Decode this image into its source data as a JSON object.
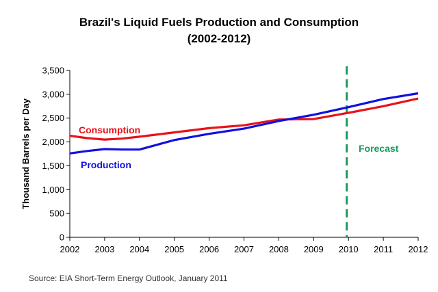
{
  "chart_data": {
    "type": "line",
    "title": "Brazil's Liquid Fuels Production and Consumption",
    "subtitle": "(2002-2012)",
    "xlabel": "",
    "ylabel": "Thousand Barrels per Day",
    "ylim": [
      0,
      3500
    ],
    "yticks": [
      0,
      500,
      1000,
      1500,
      2000,
      2500,
      3000,
      3500
    ],
    "ytick_labels": [
      "0",
      "500",
      "1,000",
      "1,500",
      "2,000",
      "2,500",
      "3,000",
      "3,500"
    ],
    "xlim": [
      2002,
      2012
    ],
    "xticks": [
      "2002",
      "2003",
      "2004",
      "2005",
      "2006",
      "2007",
      "2008",
      "2009",
      "2010",
      "2011",
      "2012"
    ],
    "series": [
      {
        "name": "Consumption",
        "color": "#e8121a",
        "x": [
          2002,
          2002.5,
          2003,
          2003.5,
          2004,
          2005,
          2006,
          2007,
          2008,
          2009,
          2010,
          2011,
          2012
        ],
        "values": [
          2130,
          2080,
          2050,
          2070,
          2110,
          2200,
          2290,
          2350,
          2470,
          2480,
          2610,
          2750,
          2910
        ]
      },
      {
        "name": "Production",
        "color": "#1010e0",
        "x": [
          2002,
          2002.5,
          2003,
          2003.5,
          2004,
          2005,
          2006,
          2007,
          2008,
          2009,
          2010,
          2011,
          2012
        ],
        "values": [
          1760,
          1810,
          1850,
          1840,
          1840,
          2040,
          2170,
          2280,
          2440,
          2570,
          2730,
          2900,
          3020
        ]
      }
    ],
    "forecast_line": {
      "x": 2009.95,
      "label": "Forecast",
      "color": "#1a9a5c"
    },
    "source": "Source: EIA Short-Term Energy Outlook, January 2011"
  }
}
